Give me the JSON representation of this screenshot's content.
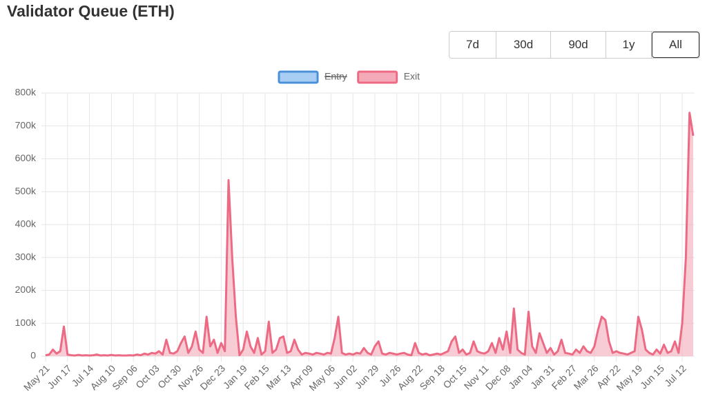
{
  "chart_data": {
    "type": "line",
    "title": "Validator Queue (ETH)",
    "ranges": [
      "7d",
      "30d",
      "90d",
      "1y",
      "All"
    ],
    "active_range_index": 4,
    "categories": [
      "May 21",
      null,
      null,
      null,
      null,
      null,
      "Jun 17",
      null,
      null,
      null,
      null,
      null,
      "Jul 14",
      null,
      null,
      null,
      null,
      null,
      "Aug 10",
      null,
      null,
      null,
      null,
      null,
      "Sep 06",
      null,
      null,
      null,
      null,
      null,
      "Oct 03",
      null,
      null,
      null,
      null,
      null,
      "Oct 30",
      null,
      null,
      null,
      null,
      null,
      "Nov 26",
      null,
      null,
      null,
      null,
      null,
      "Dec 23",
      null,
      null,
      null,
      null,
      null,
      "Jan 19",
      null,
      null,
      null,
      null,
      null,
      "Feb 15",
      null,
      null,
      null,
      null,
      null,
      "Mar 13",
      null,
      null,
      null,
      null,
      null,
      "Apr 09",
      null,
      null,
      null,
      null,
      null,
      "May 06",
      null,
      null,
      null,
      null,
      null,
      "Jun 02",
      null,
      null,
      null,
      null,
      null,
      "Jun 29",
      null,
      null,
      null,
      null,
      null,
      "Jul 26",
      null,
      null,
      null,
      null,
      null,
      "Aug 22",
      null,
      null,
      null,
      null,
      null,
      "Sep 18",
      null,
      null,
      null,
      null,
      null,
      "Oct 15",
      null,
      null,
      null,
      null,
      null,
      "Nov 11",
      null,
      null,
      null,
      null,
      null,
      "Dec 08",
      null,
      null,
      null,
      null,
      null,
      "Jan 04",
      null,
      null,
      null,
      null,
      null,
      "Jan 31",
      null,
      null,
      null,
      null,
      null,
      "Feb 27",
      null,
      null,
      null,
      null,
      null,
      "Mar 26",
      null,
      null,
      null,
      null,
      null,
      "Apr 22",
      null,
      null,
      null,
      null,
      null,
      "May 19",
      null,
      null,
      null,
      null,
      null,
      "Jun 15",
      null,
      null,
      null,
      null,
      null,
      "Jul 12",
      null,
      null,
      null
    ],
    "series": [
      {
        "name": "Entry",
        "color": "#4a90d9",
        "fill": "#a8cdf2",
        "hidden": true
      },
      {
        "name": "Exit",
        "color": "#ec6a84",
        "fill": "#f4aab8",
        "values": [
          3000,
          5000,
          20000,
          8000,
          15000,
          90000,
          5000,
          3000,
          2000,
          4000,
          2000,
          3000,
          2000,
          3000,
          5000,
          2000,
          3000,
          2000,
          4000,
          2000,
          3000,
          2000,
          2000,
          3000,
          2000,
          5000,
          3000,
          8000,
          5000,
          10000,
          8000,
          15000,
          5000,
          50000,
          10000,
          8000,
          15000,
          40000,
          60000,
          10000,
          30000,
          75000,
          20000,
          10000,
          120000,
          30000,
          50000,
          10000,
          40000,
          15000,
          535000,
          300000,
          120000,
          3000,
          20000,
          75000,
          30000,
          10000,
          55000,
          5000,
          15000,
          105000,
          10000,
          20000,
          55000,
          60000,
          10000,
          15000,
          50000,
          20000,
          5000,
          10000,
          8000,
          5000,
          10000,
          8000,
          5000,
          10000,
          8000,
          55000,
          120000,
          10000,
          5000,
          8000,
          5000,
          10000,
          8000,
          25000,
          10000,
          5000,
          30000,
          45000,
          8000,
          5000,
          10000,
          8000,
          5000,
          8000,
          10000,
          5000,
          3000,
          40000,
          10000,
          5000,
          8000,
          3000,
          5000,
          8000,
          5000,
          10000,
          15000,
          45000,
          60000,
          10000,
          20000,
          5000,
          10000,
          45000,
          15000,
          10000,
          8000,
          15000,
          40000,
          10000,
          55000,
          20000,
          75000,
          10000,
          145000,
          20000,
          10000,
          5000,
          135000,
          30000,
          10000,
          70000,
          40000,
          10000,
          25000,
          5000,
          15000,
          50000,
          10000,
          8000,
          5000,
          20000,
          10000,
          30000,
          15000,
          10000,
          30000,
          80000,
          120000,
          110000,
          45000,
          10000,
          15000,
          10000,
          8000,
          5000,
          10000,
          15000,
          120000,
          80000,
          20000,
          10000,
          5000,
          20000,
          8000,
          35000,
          10000,
          15000,
          45000,
          10000,
          100000,
          300000,
          740000,
          670000
        ]
      }
    ],
    "ylim": [
      0,
      800000
    ],
    "yticks": [
      0,
      {
        "value": 100000,
        "label": "100k"
      },
      {
        "value": 200000,
        "label": "200k"
      },
      {
        "value": 300000,
        "label": "300k"
      },
      {
        "value": 400000,
        "label": "400k"
      },
      {
        "value": 500000,
        "label": "500k"
      },
      {
        "value": 600000,
        "label": "600k"
      },
      {
        "value": 700000,
        "label": "700k"
      },
      {
        "value": 800000,
        "label": "800k"
      }
    ],
    "grid": true
  }
}
